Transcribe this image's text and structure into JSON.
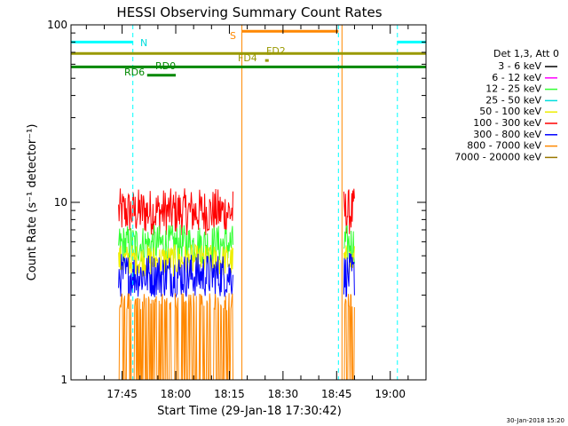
{
  "chart_data": {
    "type": "line",
    "title": "HESSI Observing Summary Count Rates",
    "xlabel": "Start Time (29-Jan-18 17:30:42)",
    "ylabel": "Count Rate (s⁻¹ detector⁻¹)",
    "y_scale": "log",
    "ylim": [
      1,
      100
    ],
    "xlim_minutes_after_1730": [
      0.7,
      100
    ],
    "grid": false,
    "x_ticks": [
      {
        "minute": 15,
        "label": "17:45"
      },
      {
        "minute": 30,
        "label": "18:00"
      },
      {
        "minute": 45,
        "label": "18:15"
      },
      {
        "minute": 60,
        "label": "18:30"
      },
      {
        "minute": 75,
        "label": "18:45"
      },
      {
        "minute": 90,
        "label": "19:00"
      }
    ],
    "y_ticks": [
      {
        "value": 1,
        "label": "1"
      },
      {
        "value": 10,
        "label": "10"
      },
      {
        "value": 100,
        "label": "100"
      }
    ],
    "legend": {
      "placement": "right",
      "header": "Det 1,3, Att 0",
      "entries": [
        {
          "name": "3 - 6 keV",
          "color": "#000000"
        },
        {
          "name": "6 - 12 keV",
          "color": "#ff00ff"
        },
        {
          "name": "12 - 25 keV",
          "color": "#33ff33"
        },
        {
          "name": "25 - 50 keV",
          "color": "#00dddd"
        },
        {
          "name": "50 - 100 keV",
          "color": "#eeee00"
        },
        {
          "name": "100 - 300 keV",
          "color": "#ff0000"
        },
        {
          "name": "300 - 800 keV",
          "color": "#0000ff"
        },
        {
          "name": "800 - 7000 keV",
          "color": "#ff8800"
        },
        {
          "name": "7000 - 20000 keV",
          "color": "#997700"
        }
      ]
    },
    "segments": [
      {
        "start": 0.7,
        "end": 18,
        "y": 80,
        "color": "#00ffff",
        "label": "N"
      },
      {
        "start": 92,
        "end": 100,
        "y": 80,
        "color": "#00ffff"
      },
      {
        "start": 48.5,
        "end": 75.5,
        "y": 92,
        "color": "#ff8800",
        "label": "S"
      },
      {
        "start": 0.7,
        "end": 100,
        "y": 69,
        "color": "#999900"
      },
      {
        "start": 0.7,
        "end": 100,
        "y": 58,
        "color": "#008800"
      },
      {
        "start": 55.5,
        "end": 56.5,
        "y": 69,
        "color": "#999900",
        "label": "FD2"
      },
      {
        "start": 55,
        "end": 56,
        "y": 63,
        "color": "#999900",
        "label": "FD4"
      },
      {
        "start": 22,
        "end": 30,
        "y": 52,
        "color": "#008800",
        "label": "RD0"
      }
    ],
    "labels_left_of_segment": [
      "RD6"
    ],
    "vlines": [
      {
        "minute": 0.7,
        "color": "#00ffff",
        "style": "solid"
      },
      {
        "minute": 18,
        "color": "#00ffff",
        "style": "dashed"
      },
      {
        "minute": 75.5,
        "color": "#00ffff",
        "style": "dashed"
      },
      {
        "minute": 92,
        "color": "#00ffff",
        "style": "dashed"
      },
      {
        "minute": 48.5,
        "color": "#ff8800",
        "style": "solid"
      },
      {
        "minute": 76.5,
        "color": "#ff8800",
        "style": "solid"
      }
    ],
    "data_windows": [
      {
        "start": 14,
        "end": 46
      },
      {
        "start": 77,
        "end": 80
      }
    ],
    "series_envelopes": [
      {
        "name": "100 - 300 keV",
        "color": "#ff0000",
        "lo": 6.5,
        "hi": 12
      },
      {
        "name": "12 - 25 keV",
        "color": "#33ff33",
        "lo": 4.5,
        "hi": 7.5
      },
      {
        "name": "50 - 100 keV",
        "color": "#eeee00",
        "lo": 3.8,
        "hi": 5.8
      },
      {
        "name": "300 - 800 keV",
        "color": "#0000ff",
        "lo": 2.9,
        "hi": 5.2
      },
      {
        "name": "800 - 7000 keV",
        "color": "#ff8800",
        "lo": 1.0,
        "hi": 3.1
      }
    ]
  },
  "footer": {
    "date_stamp": "30-Jan-2018 15:20"
  }
}
